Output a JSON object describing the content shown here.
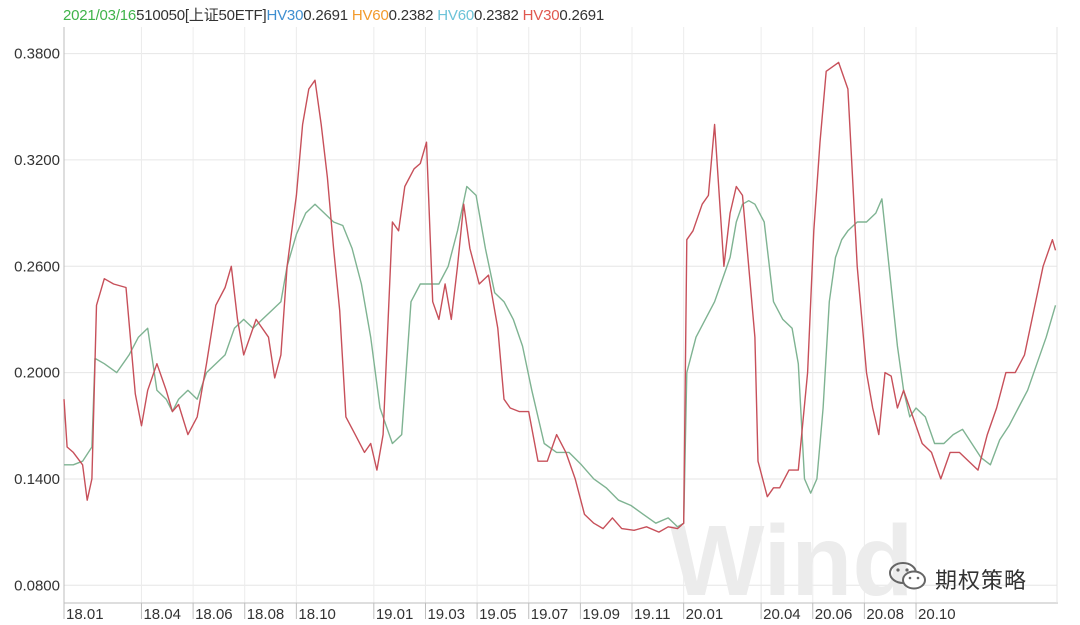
{
  "legend": {
    "date": "2021/03/16",
    "code": "510050[上证50ETF]",
    "items": [
      {
        "label": "HV30",
        "value": "0.2691",
        "color": "#3f8fd0"
      },
      {
        "label": "HV60",
        "value": "0.2382",
        "color": "#f39a2b"
      },
      {
        "label": "HV60",
        "value": "0.2382",
        "color": "#6cc3d8"
      },
      {
        "label": "HV30",
        "value": "0.2691",
        "color": "#e0584f"
      }
    ],
    "date_color": "#3fb34a"
  },
  "watermark": {
    "logo": "Wind",
    "account": "期权策略"
  },
  "chart_data": {
    "type": "line",
    "title": "",
    "xlabel": "",
    "ylabel": "",
    "ylim": [
      0.07,
      0.395
    ],
    "yticks": [
      "0.3800",
      "0.3200",
      "0.2600",
      "0.2000",
      "0.1400",
      "0.0800"
    ],
    "ytick_values": [
      0.38,
      0.32,
      0.26,
      0.2,
      0.14,
      0.08
    ],
    "xticks": [
      "18.01",
      "18.04",
      "18.06",
      "18.08",
      "18.10",
      "19.01",
      "19.03",
      "19.05",
      "19.07",
      "19.09",
      "19.11",
      "20.01",
      "20.04",
      "20.06",
      "20.08",
      "20.10"
    ],
    "xtick_values": [
      2018.0,
      2018.25,
      2018.4167,
      2018.5833,
      2018.75,
      2019.0,
      2019.1667,
      2019.3333,
      2019.5,
      2019.6667,
      2019.8333,
      2020.0,
      2020.25,
      2020.4167,
      2020.5833,
      2020.75
    ],
    "xlim": [
      2018.0,
      2021.205
    ],
    "grid": true,
    "series": [
      {
        "name": "HV30",
        "color": "#c7505a",
        "x": [
          2018.0,
          2018.01,
          2018.03,
          2018.06,
          2018.075,
          2018.09,
          2018.105,
          2018.13,
          2018.16,
          2018.2,
          2018.23,
          2018.25,
          2018.27,
          2018.3,
          2018.33,
          2018.35,
          2018.37,
          2018.4,
          2018.43,
          2018.46,
          2018.49,
          2018.52,
          2018.54,
          2018.56,
          2018.58,
          2018.62,
          2018.66,
          2018.68,
          2018.7,
          2018.72,
          2018.75,
          2018.77,
          2018.79,
          2018.81,
          2018.83,
          2018.85,
          2018.87,
          2018.89,
          2018.91,
          2018.94,
          2018.97,
          2018.99,
          2019.01,
          2019.03,
          2019.06,
          2019.08,
          2019.1,
          2019.13,
          2019.15,
          2019.17,
          2019.19,
          2019.21,
          2019.23,
          2019.25,
          2019.27,
          2019.29,
          2019.31,
          2019.34,
          2019.37,
          2019.4,
          2019.42,
          2019.44,
          2019.47,
          2019.5,
          2019.53,
          2019.56,
          2019.59,
          2019.62,
          2019.65,
          2019.68,
          2019.71,
          2019.74,
          2019.77,
          2019.8,
          2019.84,
          2019.88,
          2019.92,
          2019.95,
          2019.98,
          2020.0,
          2020.01,
          2020.03,
          2020.06,
          2020.08,
          2020.1,
          2020.13,
          2020.15,
          2020.17,
          2020.19,
          2020.21,
          2020.23,
          2020.24,
          2020.27,
          2020.29,
          2020.31,
          2020.34,
          2020.37,
          2020.4,
          2020.42,
          2020.44,
          2020.46,
          2020.5,
          2020.53,
          2020.56,
          2020.59,
          2020.61,
          2020.63,
          2020.65,
          2020.67,
          2020.69,
          2020.71,
          2020.74,
          2020.77,
          2020.8,
          2020.83,
          2020.86,
          2020.89,
          2020.92,
          2020.95,
          2020.98,
          2021.01,
          2021.04,
          2021.07,
          2021.1,
          2021.13,
          2021.16,
          2021.19,
          2021.2
        ],
        "values": [
          0.185,
          0.158,
          0.155,
          0.148,
          0.128,
          0.14,
          0.238,
          0.253,
          0.25,
          0.248,
          0.188,
          0.17,
          0.19,
          0.205,
          0.19,
          0.178,
          0.182,
          0.165,
          0.175,
          0.205,
          0.238,
          0.248,
          0.26,
          0.23,
          0.21,
          0.23,
          0.22,
          0.197,
          0.21,
          0.26,
          0.3,
          0.34,
          0.36,
          0.365,
          0.34,
          0.31,
          0.27,
          0.235,
          0.175,
          0.165,
          0.155,
          0.16,
          0.145,
          0.165,
          0.285,
          0.28,
          0.305,
          0.315,
          0.318,
          0.33,
          0.24,
          0.23,
          0.25,
          0.23,
          0.26,
          0.295,
          0.27,
          0.25,
          0.255,
          0.225,
          0.185,
          0.18,
          0.178,
          0.178,
          0.15,
          0.15,
          0.165,
          0.155,
          0.14,
          0.12,
          0.115,
          0.112,
          0.118,
          0.112,
          0.111,
          0.113,
          0.11,
          0.113,
          0.112,
          0.115,
          0.275,
          0.28,
          0.295,
          0.3,
          0.34,
          0.26,
          0.29,
          0.305,
          0.3,
          0.26,
          0.22,
          0.15,
          0.13,
          0.135,
          0.135,
          0.145,
          0.145,
          0.2,
          0.28,
          0.33,
          0.37,
          0.375,
          0.36,
          0.26,
          0.2,
          0.18,
          0.165,
          0.2,
          0.198,
          0.18,
          0.19,
          0.175,
          0.16,
          0.155,
          0.14,
          0.155,
          0.155,
          0.15,
          0.145,
          0.165,
          0.18,
          0.2,
          0.2,
          0.21,
          0.235,
          0.26,
          0.275,
          0.269
        ]
      },
      {
        "name": "HV60",
        "color": "#7fb392",
        "x": [
          2018.0,
          2018.03,
          2018.06,
          2018.09,
          2018.1,
          2018.13,
          2018.17,
          2018.21,
          2018.24,
          2018.27,
          2018.3,
          2018.33,
          2018.35,
          2018.37,
          2018.4,
          2018.43,
          2018.46,
          2018.49,
          2018.52,
          2018.55,
          2018.58,
          2018.61,
          2018.64,
          2018.67,
          2018.7,
          2018.72,
          2018.75,
          2018.78,
          2018.81,
          2018.84,
          2018.87,
          2018.9,
          2018.93,
          2018.96,
          2018.99,
          2019.02,
          2019.04,
          2019.06,
          2019.09,
          2019.12,
          2019.15,
          2019.18,
          2019.21,
          2019.24,
          2019.27,
          2019.3,
          2019.33,
          2019.36,
          2019.39,
          2019.42,
          2019.45,
          2019.48,
          2019.51,
          2019.55,
          2019.59,
          2019.63,
          2019.67,
          2019.71,
          2019.75,
          2019.79,
          2019.83,
          2019.87,
          2019.91,
          2019.95,
          2019.98,
          2020.0,
          2020.01,
          2020.04,
          2020.07,
          2020.1,
          2020.13,
          2020.15,
          2020.17,
          2020.19,
          2020.21,
          2020.23,
          2020.26,
          2020.29,
          2020.32,
          2020.35,
          2020.37,
          2020.39,
          2020.41,
          2020.43,
          2020.45,
          2020.47,
          2020.49,
          2020.51,
          2020.53,
          2020.56,
          2020.59,
          2020.62,
          2020.64,
          2020.66,
          2020.69,
          2020.71,
          2020.73,
          2020.75,
          2020.78,
          2020.81,
          2020.84,
          2020.87,
          2020.9,
          2020.93,
          2020.96,
          2020.99,
          2021.02,
          2021.05,
          2021.08,
          2021.11,
          2021.14,
          2021.17,
          2021.2
        ],
        "values": [
          0.148,
          0.148,
          0.15,
          0.158,
          0.208,
          0.205,
          0.2,
          0.21,
          0.22,
          0.225,
          0.19,
          0.185,
          0.178,
          0.185,
          0.19,
          0.185,
          0.2,
          0.205,
          0.21,
          0.225,
          0.23,
          0.225,
          0.23,
          0.235,
          0.24,
          0.26,
          0.278,
          0.29,
          0.295,
          0.29,
          0.285,
          0.283,
          0.27,
          0.25,
          0.22,
          0.18,
          0.17,
          0.16,
          0.165,
          0.24,
          0.25,
          0.25,
          0.25,
          0.26,
          0.28,
          0.305,
          0.3,
          0.27,
          0.245,
          0.24,
          0.23,
          0.215,
          0.19,
          0.16,
          0.155,
          0.155,
          0.148,
          0.14,
          0.135,
          0.128,
          0.125,
          0.12,
          0.115,
          0.118,
          0.113,
          0.115,
          0.2,
          0.22,
          0.23,
          0.24,
          0.255,
          0.265,
          0.285,
          0.295,
          0.297,
          0.295,
          0.285,
          0.24,
          0.23,
          0.225,
          0.205,
          0.14,
          0.132,
          0.14,
          0.18,
          0.24,
          0.265,
          0.275,
          0.28,
          0.285,
          0.285,
          0.29,
          0.298,
          0.265,
          0.215,
          0.19,
          0.175,
          0.18,
          0.175,
          0.16,
          0.16,
          0.165,
          0.168,
          0.16,
          0.152,
          0.148,
          0.162,
          0.17,
          0.18,
          0.19,
          0.205,
          0.22,
          0.238
        ]
      }
    ]
  }
}
